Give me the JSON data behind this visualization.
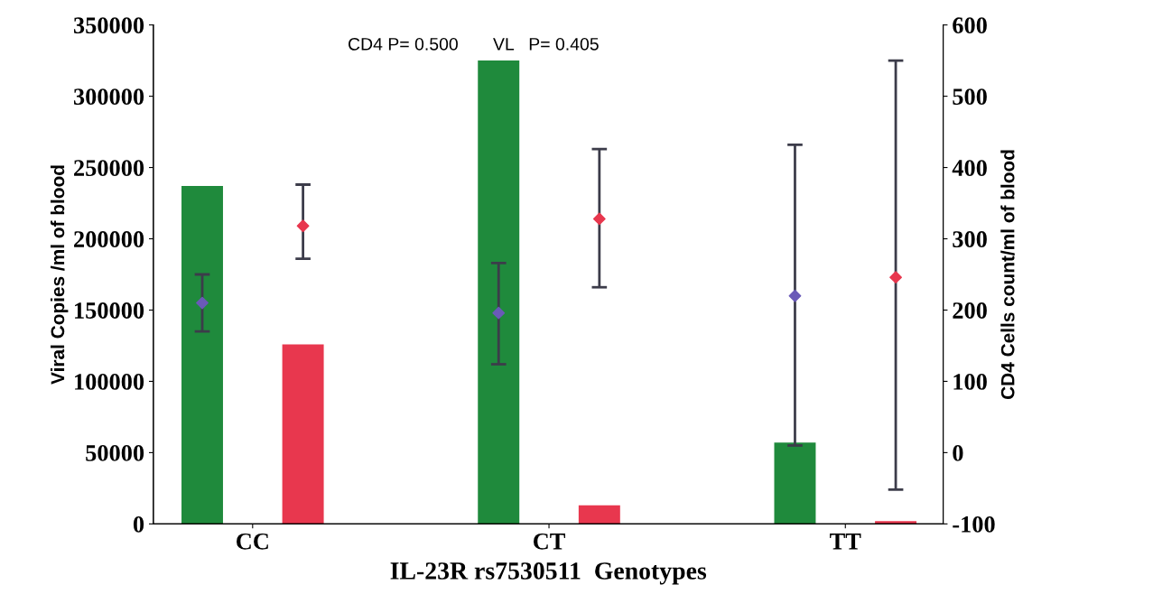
{
  "chart_data": {
    "type": "bar",
    "categories": [
      "CC",
      "CT",
      "TT"
    ],
    "series": [
      {
        "color": "#1f8a3c",
        "values": [
          237000,
          325000,
          57000
        ]
      },
      {
        "color": "#e8374e",
        "values": [
          126000,
          13000,
          2000
        ]
      },
      {
        "type": "scatter",
        "axis": "y2",
        "color": "#6a5ab8",
        "values": [
          210,
          196,
          220
        ],
        "errors": [
          [
            170,
            250
          ],
          [
            124,
            266
          ],
          [
            10,
            432
          ]
        ]
      },
      {
        "type": "scatter",
        "axis": "y2",
        "color": "#e8374e",
        "values": [
          318,
          328,
          246
        ],
        "errors": [
          [
            272,
            376
          ],
          [
            232,
            426
          ],
          [
            -52,
            550
          ]
        ]
      }
    ],
    "marker": "diamond",
    "ylim": [
      0,
      350000
    ],
    "yticks": [
      0,
      50000,
      100000,
      150000,
      200000,
      250000,
      300000,
      350000
    ],
    "y2lim": [
      -100,
      600
    ],
    "y2ticks": [
      -100,
      0,
      100,
      200,
      300,
      400,
      500,
      600
    ],
    "xlabel": "IL-23R rs7530511  Genotypes",
    "ylabel": "Viral Copies /ml of blood",
    "y2label": "CD4 Cells count/ml of blood",
    "annotations": [
      "CD4 P= 0.500",
      "VL   P= 0.405"
    ],
    "grid": false,
    "legend": false
  }
}
